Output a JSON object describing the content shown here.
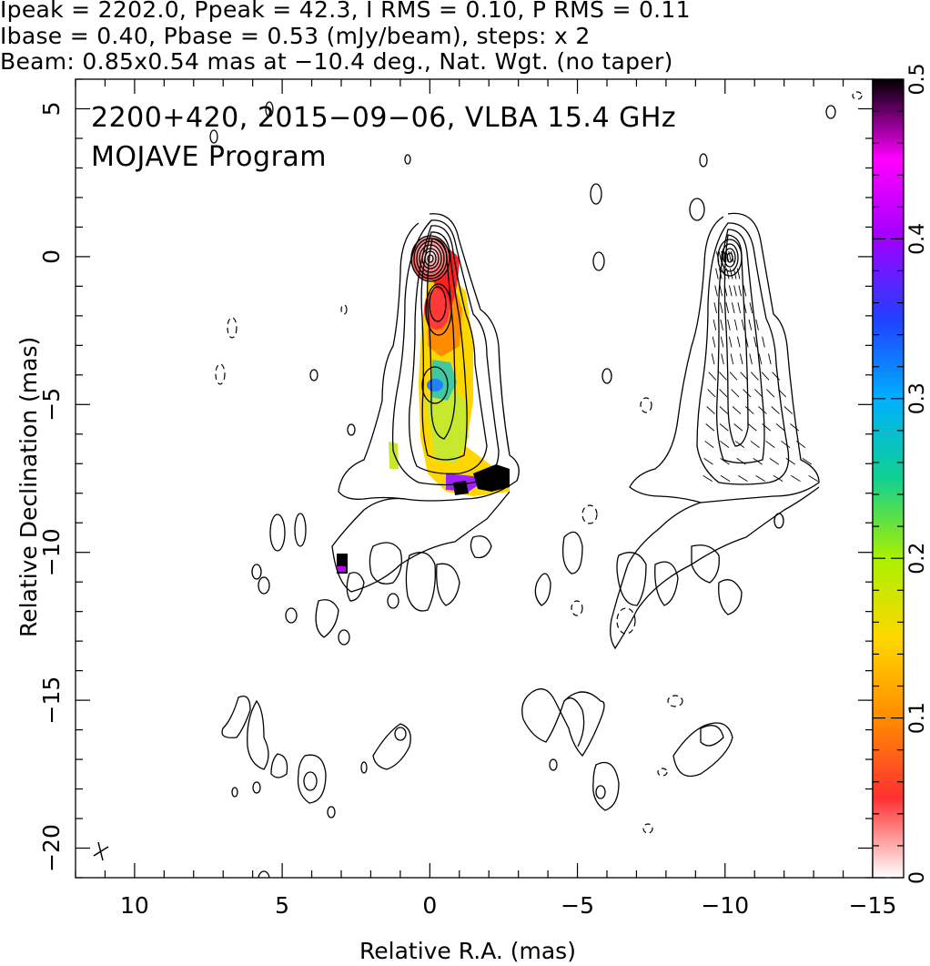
{
  "header": {
    "line1": "Ipeak = 2202.0, Ppeak = 42.3, I RMS = 0.10, P RMS = 0.11",
    "line2": "Ibase = 0.40, Pbase = 0.53 (mJy/beam), steps: x 2",
    "line3": "Beam: 0.85x0.54 mas at −10.4 deg., Nat. Wgt. (no taper)"
  },
  "chart_data": {
    "type": "heatmap",
    "title": "2200+420, 2015−09−06, VLBA 15.4 GHz",
    "subtitle": "MOJAVE Program",
    "xlabel": "Relative R.A. (mas)",
    "ylabel": "Relative Declination (mas)",
    "xlim": [
      12,
      -15
    ],
    "ylim": [
      -21,
      6
    ],
    "x_ticks": [
      "10",
      "5",
      "0",
      "−5",
      "−10",
      "−15"
    ],
    "x_tick_values": [
      10,
      5,
      0,
      -5,
      -10,
      -15
    ],
    "y_ticks": [
      "5",
      "0",
      "−5",
      "−10",
      "−15",
      "−20"
    ],
    "y_tick_values": [
      5,
      0,
      -5,
      -10,
      -15,
      -20
    ],
    "colorbar": {
      "range": [
        0,
        0.5
      ],
      "ticks": [
        "0",
        "0.1",
        "0.2",
        "0.3",
        "0.4",
        "0.5"
      ],
      "tick_values": [
        0,
        0.1,
        0.2,
        0.3,
        0.4,
        0.5
      ],
      "colors": [
        "#ffffff",
        "#ff3030",
        "#ff8c00",
        "#ffd700",
        "#aaf000",
        "#10d090",
        "#00b0ff",
        "#2040ff",
        "#a000ff",
        "#ff00ff",
        "#000000"
      ]
    },
    "panels": [
      {
        "name": "total intensity with fractional polarization colour",
        "core": [
          0,
          0
        ],
        "jet_end": [
          -1.5,
          -7.5
        ]
      },
      {
        "name": "polarization vectors",
        "core": [
          -10,
          0
        ],
        "jet_end": [
          -12,
          -7.5
        ]
      }
    ],
    "beam": {
      "major_mas": 0.85,
      "minor_mas": 0.54,
      "pa_deg": -10.4
    }
  }
}
